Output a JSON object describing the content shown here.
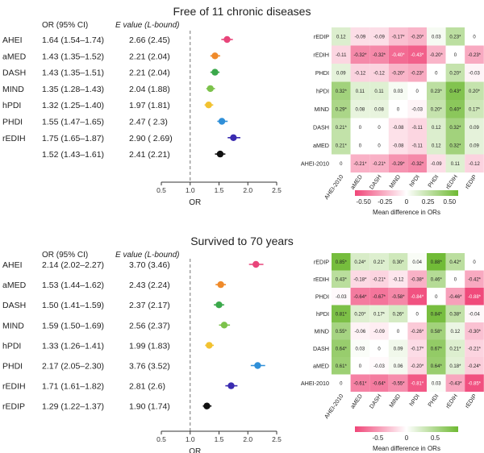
{
  "panels": [
    {
      "title": "Free of 11 chronic diseases",
      "forest": {
        "col_headers": [
          "OR (95% CI)",
          "E value (L-bound)"
        ],
        "xlabel": "OR",
        "xticks": [
          "0.5",
          "1.0",
          "1.5",
          "2.0",
          "2.5"
        ],
        "rows": [
          {
            "label": "AHEI",
            "ci": "1.64 (1.54–1.74)",
            "evalue": "2.66 (2.45)",
            "or": 1.64,
            "lo": 1.54,
            "hi": 1.74,
            "color": "#e8457a"
          },
          {
            "label": "aMED",
            "ci": "1.43 (1.35–1.52)",
            "evalue": "2.21 (2.04)",
            "or": 1.43,
            "lo": 1.35,
            "hi": 1.52,
            "color": "#ef8a2a"
          },
          {
            "label": "DASH",
            "ci": "1.43 (1.35–1.51)",
            "evalue": "2.21 (2.04)",
            "or": 1.43,
            "lo": 1.35,
            "hi": 1.51,
            "color": "#3aa84a"
          },
          {
            "label": "MIND",
            "ci": "1.35 (1.28–1.43)",
            "evalue": "2.04 (1.88)",
            "or": 1.35,
            "lo": 1.28,
            "hi": 1.43,
            "color": "#7cc24b"
          },
          {
            "label": "hPDI",
            "ci": "1.32 (1.25–1.40)",
            "evalue": "1.97 (1.81)",
            "or": 1.32,
            "lo": 1.25,
            "hi": 1.4,
            "color": "#f2c230"
          },
          {
            "label": "PHDI",
            "ci": "1.55 (1.47–1.65)",
            "evalue": "2.47 ( 2.3)",
            "or": 1.55,
            "lo": 1.47,
            "hi": 1.65,
            "color": "#2f8fd8"
          },
          {
            "label": "rEDIH",
            "ci": "1.75 (1.65–1.87)",
            "evalue": "2.90 ( 2.69)",
            "or": 1.75,
            "lo": 1.65,
            "hi": 1.87,
            "color": "#3a2bb0"
          },
          {
            "label": "",
            "ci": "1.52 (1.43–1.61)",
            "evalue": "2.41 (2.21)",
            "or": 1.52,
            "lo": 1.43,
            "hi": 1.61,
            "color": "#111111"
          }
        ]
      },
      "heatmap": {
        "rows": [
          "rEDIP",
          "rEDIH",
          "PHDI",
          "hPDI",
          "MIND",
          "DASH",
          "aMED",
          "AHEI-2010"
        ],
        "cols": [
          "AHEI-2010",
          "aMED",
          "DASH",
          "MIND",
          "hPDI",
          "PHDI",
          "rEDIH",
          "rEDIP"
        ],
        "labels": [
          [
            "0.12",
            "-0.09",
            "-0.09",
            "-0.17*",
            "-0.20*",
            "0.03",
            "0.23*",
            "0"
          ],
          [
            "-0.11",
            "-0.32*",
            "-0.32*",
            "-0.40*",
            "-0.43*",
            "-0.20*",
            "0",
            "-0.23*"
          ],
          [
            "0.09",
            "-0.12",
            "-0.12",
            "-0.20*",
            "-0.23*",
            "0",
            "0.20*",
            "-0.03"
          ],
          [
            "0.32*",
            "0.11",
            "0.11",
            "0.03",
            "0",
            "0.23*",
            "0.43*",
            "0.20*"
          ],
          [
            "0.29*",
            "0.08",
            "0.08",
            "0",
            "-0.03",
            "0.20*",
            "0.40*",
            "0.17*"
          ],
          [
            "0.21*",
            "0",
            "0",
            "-0.08",
            "-0.11",
            "0.12",
            "0.32*",
            "0.09"
          ],
          [
            "0.21*",
            "0",
            "0",
            "-0.08",
            "-0.11",
            "0.12",
            "0.32*",
            "0.09"
          ],
          [
            "0",
            "-0.21*",
            "-0.21*",
            "-0.29*",
            "-0.32*",
            "-0.09",
            "0.11",
            "-0.12"
          ]
        ],
        "colorbar_ticks": [
          "-0.50",
          "-0.25",
          "0",
          "0.25",
          "0.50"
        ],
        "colorbar_label": "Mean difference in ORs",
        "range": [
          -0.5,
          0.5
        ]
      }
    },
    {
      "title": "Survived to 70 years",
      "forest": {
        "col_headers": [
          "OR (95% CI)",
          "E value (L-bound)"
        ],
        "xlabel": "OR",
        "xticks": [
          "0.5",
          "1.0",
          "1.5",
          "2.0",
          "2.5"
        ],
        "rows": [
          {
            "label": "AHEI",
            "ci": "2.14 (2.02–2.27)",
            "evalue": "3.70 (3.46)",
            "or": 2.14,
            "lo": 2.02,
            "hi": 2.27,
            "color": "#e8457a"
          },
          {
            "label": "aMED",
            "ci": "1.53 (1.44–1.62)",
            "evalue": "2.43 (2.24)",
            "or": 1.53,
            "lo": 1.44,
            "hi": 1.62,
            "color": "#ef8a2a"
          },
          {
            "label": "DASH",
            "ci": "1.50 (1.41–1.59)",
            "evalue": "2.37 (2.17)",
            "or": 1.5,
            "lo": 1.41,
            "hi": 1.59,
            "color": "#3aa84a"
          },
          {
            "label": "MIND",
            "ci": "1.59 (1.50–1.69)",
            "evalue": "2.56 (2.37)",
            "or": 1.59,
            "lo": 1.5,
            "hi": 1.69,
            "color": "#7cc24b"
          },
          {
            "label": "hPDI",
            "ci": "1.33 (1.26–1.41)",
            "evalue": "1.99 (1.83)",
            "or": 1.33,
            "lo": 1.26,
            "hi": 1.41,
            "color": "#f2c230"
          },
          {
            "label": "PHDI",
            "ci": "2.17 (2.05–2.30)",
            "evalue": "3.76 (3.52)",
            "or": 2.17,
            "lo": 2.05,
            "hi": 2.3,
            "color": "#2f8fd8"
          },
          {
            "label": "rEDIH",
            "ci": "1.71 (1.61–1.82)",
            "evalue": "2.81 (2.6)",
            "or": 1.71,
            "lo": 1.61,
            "hi": 1.82,
            "color": "#3a2bb0"
          },
          {
            "label": "rEDIP",
            "ci": "1.29 (1.22–1.37)",
            "evalue": "1.90 (1.74)",
            "or": 1.29,
            "lo": 1.22,
            "hi": 1.37,
            "color": "#111111"
          }
        ]
      },
      "heatmap": {
        "rows": [
          "rEDIP",
          "rEDIH",
          "PHDI",
          "hPDI",
          "MIND",
          "DASH",
          "aMED",
          "AHEI-2010"
        ],
        "cols": [
          "AHEI-2010",
          "aMED",
          "DASH",
          "MIND",
          "hPDI",
          "PHDI",
          "rEDIH",
          "rEDIP"
        ],
        "labels": [
          [
            "0.85*",
            "0.24*",
            "0.21*",
            "0.30*",
            "0.04",
            "0.88*",
            "0.42*",
            "0"
          ],
          [
            "0.43*",
            "-0.18*",
            "-0.21*",
            "-0.12",
            "-0.38*",
            "0.46*",
            "0",
            "-0.42*"
          ],
          [
            "-0.03",
            "-0.64*",
            "-0.67*",
            "-0.58*",
            "-0.84*",
            "0",
            "-0.46*",
            "-0.88*"
          ],
          [
            "0.81*",
            "0.20*",
            "0.17*",
            "0.26*",
            "0",
            "0.84*",
            "0.38*",
            "-0.04"
          ],
          [
            "0.55*",
            "-0.06",
            "-0.09",
            "0",
            "-0.26*",
            "0.58*",
            "0.12",
            "-0.30*"
          ],
          [
            "0.64*",
            "0.03",
            "0",
            "0.09",
            "-0.17*",
            "0.67*",
            "0.21*",
            "-0.21*"
          ],
          [
            "0.61*",
            "0",
            "-0.03",
            "0.06",
            "-0.20*",
            "0.64*",
            "0.18*",
            "-0.24*"
          ],
          [
            "0",
            "-0.61*",
            "-0.64*",
            "-0.55*",
            "-0.81*",
            "0.03",
            "-0.43*",
            "-0.85*"
          ]
        ],
        "colorbar_ticks": [
          "-0.5",
          "0",
          "0.5"
        ],
        "colorbar_label": "Mean difference in ORs",
        "range": [
          -0.9,
          0.9
        ]
      }
    }
  ],
  "chart_data": [
    {
      "type": "scatter",
      "title": "Free of 11 chronic diseases",
      "xlabel": "OR",
      "xlim": [
        0.5,
        2.5
      ],
      "reference_line": 1.0,
      "categories": [
        "AHEI",
        "aMED",
        "DASH",
        "MIND",
        "hPDI",
        "PHDI",
        "rEDIH",
        ""
      ],
      "values": [
        1.64,
        1.43,
        1.43,
        1.35,
        1.32,
        1.55,
        1.75,
        1.52
      ],
      "ci_low": [
        1.54,
        1.35,
        1.35,
        1.28,
        1.25,
        1.47,
        1.65,
        1.43
      ],
      "ci_high": [
        1.74,
        1.52,
        1.51,
        1.43,
        1.4,
        1.65,
        1.87,
        1.61
      ]
    },
    {
      "type": "heatmap",
      "title": "Free of 11 chronic diseases",
      "rows": [
        "rEDIP",
        "rEDIH",
        "PHDI",
        "hPDI",
        "MIND",
        "DASH",
        "aMED",
        "AHEI-2010"
      ],
      "cols": [
        "AHEI-2010",
        "aMED",
        "DASH",
        "MIND",
        "hPDI",
        "PHDI",
        "rEDIH",
        "rEDIP"
      ],
      "colorbar_label": "Mean difference in ORs"
    },
    {
      "type": "scatter",
      "title": "Survived to 70 years",
      "xlabel": "OR",
      "xlim": [
        0.5,
        2.5
      ],
      "reference_line": 1.0,
      "categories": [
        "AHEI",
        "aMED",
        "DASH",
        "MIND",
        "hPDI",
        "PHDI",
        "rEDIH",
        "rEDIP"
      ],
      "values": [
        2.14,
        1.53,
        1.5,
        1.59,
        1.33,
        2.17,
        1.71,
        1.29
      ],
      "ci_low": [
        2.02,
        1.44,
        1.41,
        1.5,
        1.26,
        2.05,
        1.61,
        1.22
      ],
      "ci_high": [
        2.27,
        1.62,
        1.59,
        1.69,
        1.41,
        2.3,
        1.82,
        1.37
      ]
    },
    {
      "type": "heatmap",
      "title": "Survived to 70 years",
      "rows": [
        "rEDIP",
        "rEDIH",
        "PHDI",
        "hPDI",
        "MIND",
        "DASH",
        "aMED",
        "AHEI-2010"
      ],
      "cols": [
        "AHEI-2010",
        "aMED",
        "DASH",
        "MIND",
        "hPDI",
        "PHDI",
        "rEDIH",
        "rEDIP"
      ],
      "colorbar_label": "Mean difference in ORs"
    }
  ]
}
